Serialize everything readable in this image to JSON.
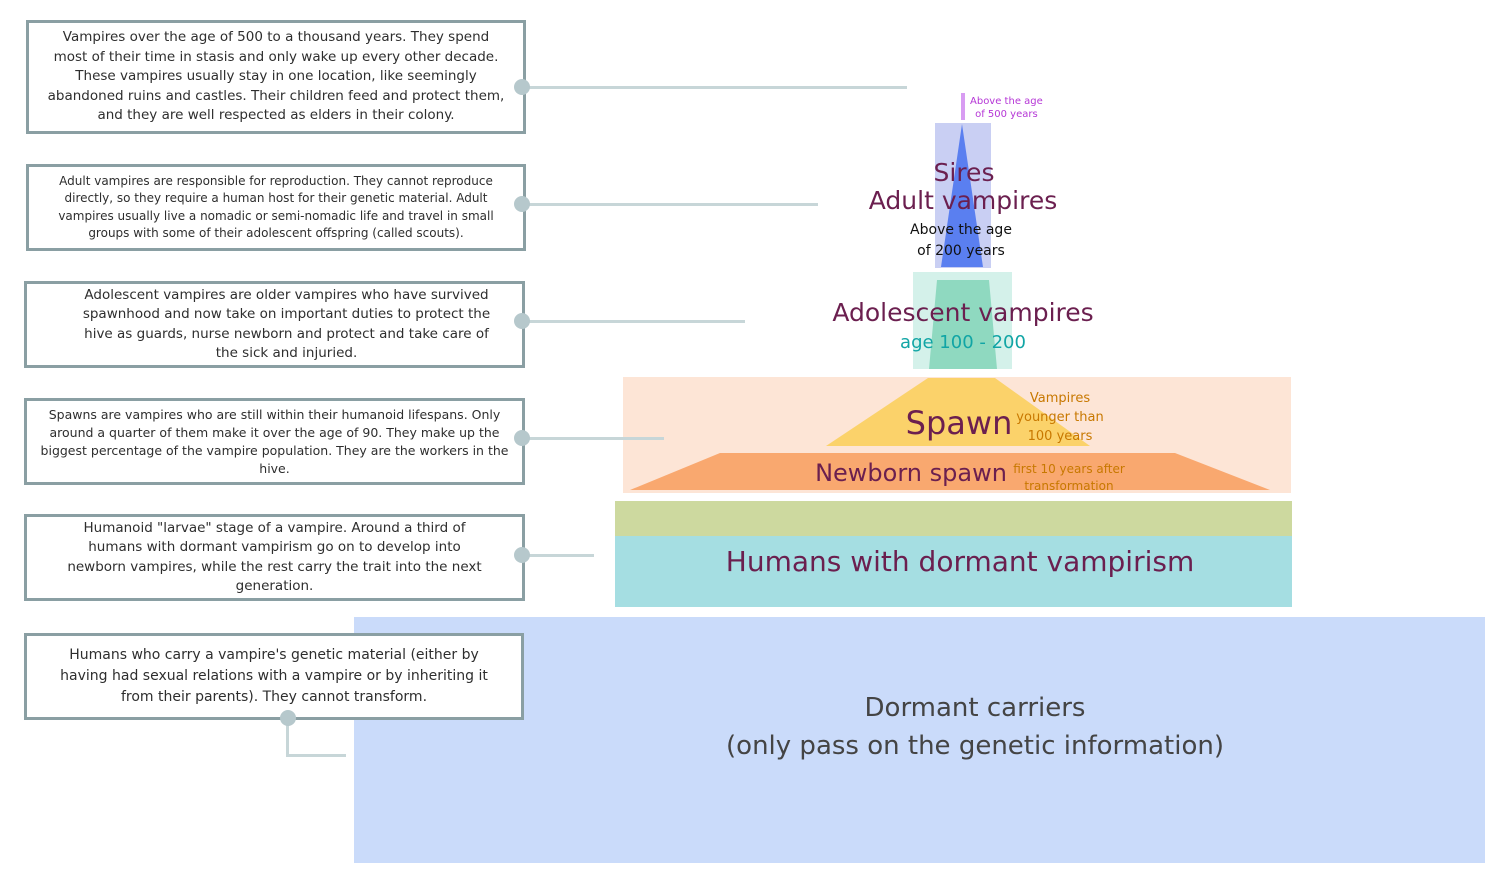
{
  "descriptions": [
    "Vampires over the age of 500 to a thousand years. They spend most of their time in stasis and only wake up every other decade. These vampires usually stay in one location, like seemingly abandoned ruins and castles. Their children feed and protect them, and they are well respected as elders in their colony.",
    "Adult vampires are responsible for reproduction. They cannot reproduce directly, so they require a human host for their genetic material. Adult vampires usually live a nomadic or semi-nomadic life and travel in small groups with some of their adolescent offspring (called scouts).",
    "Adolescent vampires are older vampires who have survived spawnhood and now take on important duties to protect the hive as guards, nurse newborn and protect and take care of the sick and injuried.",
    "Spawns are vampires who are still within their humanoid lifespans. Only around a quarter of them make it over the age of 90. They make up the biggest percentage of the vampire population. They are the workers in the hive.",
    "Humanoid \"larvae\" stage of a vampire. Around a third of humans with dormant vampirism go on to develop into newborn vampires, while the rest carry the trait into the next generation.",
    "Humans who carry a vampire's genetic material (either by having had sexual relations with a vampire or by inheriting it from their parents). They cannot transform."
  ],
  "pyramid": {
    "sires_age_line1": "Above the age",
    "sires_age_line2": "of 500 years",
    "sires": "Sires",
    "adult": "Adult vampires",
    "adult_age_line1": "Above the age",
    "adult_age_line2": "of 200 years",
    "adolescent": "Adolescent vampires",
    "adolescent_age": "age 100 - 200",
    "spawn": "Spawn",
    "spawn_age_line1": "Vampires",
    "spawn_age_line2": "younger than",
    "spawn_age_line3": "100 years",
    "newborn": "Newborn spawn",
    "newborn_age_line1": "first 10 years after",
    "newborn_age_line2": "transformation",
    "humans": "Humans with dormant vampirism",
    "carriers_line1": "Dormant carriers",
    "carriers_line2": "(only pass on the genetic information)"
  },
  "colors": {
    "title": "#6b1f4f",
    "sires_note": "#b536d6",
    "adolescent_age": "#11a5a5",
    "spawn_note": "#c87800",
    "carriers_text": "#444444"
  }
}
